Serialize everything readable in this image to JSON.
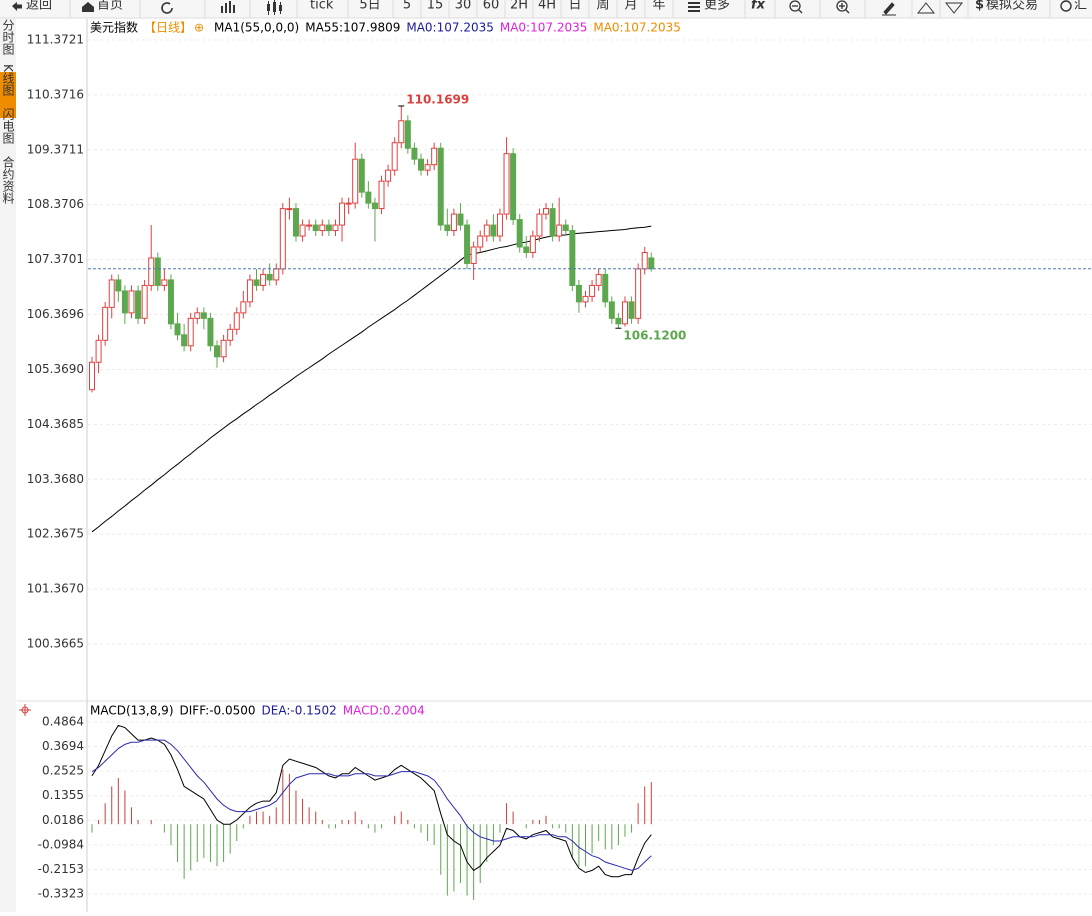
{
  "toolbar": {
    "back": "返回",
    "home": "首页",
    "tick": "tick",
    "periods": [
      "5日",
      "5",
      "15",
      "30",
      "60",
      "2H",
      "4H",
      "日",
      "周",
      "月",
      "年"
    ],
    "more": "更多",
    "fx": "fx",
    "sim": "模拟交易",
    "cut": "汇"
  },
  "side_tabs": [
    "分时图",
    "K线图",
    "闪电图",
    "合约资料"
  ],
  "chart_data": [
    {
      "type": "candlestick",
      "legend": [
        {
          "text": "美元指数",
          "color": "#000000"
        },
        {
          "text": "【日线】",
          "color": "#f08c00"
        },
        {
          "text": "MA1(55,0,0,0)",
          "color": "#000000"
        },
        {
          "text": "MA55:107.9809",
          "color": "#000000"
        },
        {
          "text": "MA0:107.2035",
          "color": "#1a1a9c"
        },
        {
          "text": "MA0:107.2035",
          "color": "#e020e0"
        },
        {
          "text": "MA0:107.2035",
          "color": "#f08c00"
        }
      ],
      "ylim": [
        99.3456,
        111.7365
      ],
      "yticks": [
        111.3721,
        110.3716,
        109.3711,
        108.3706,
        107.3701,
        106.3696,
        {
          "value": 105.369,
          "label": "105.3690"
        },
        104.3685,
        {
          "value": 103.368,
          "label": "103.3680"
        },
        102.3675,
        {
          "value": 101.367,
          "label": "101.3670"
        },
        100.3665
      ],
      "up_color": "#e0403f",
      "down_color": "#5da84e",
      "last_color": "#4a7ab0",
      "candles": [
        [
          105.0,
          105.6,
          104.95,
          105.5
        ],
        [
          105.5,
          106.0,
          105.3,
          105.9
        ],
        [
          105.9,
          106.6,
          105.8,
          106.5
        ],
        [
          106.5,
          107.1,
          106.3,
          107.0
        ],
        [
          107.0,
          107.1,
          106.6,
          106.8
        ],
        [
          106.8,
          106.9,
          106.2,
          106.4
        ],
        [
          106.4,
          106.9,
          106.3,
          106.8
        ],
        [
          106.8,
          106.9,
          106.2,
          106.3
        ],
        [
          106.3,
          107.0,
          106.2,
          106.9
        ],
        [
          106.9,
          108.0,
          106.8,
          107.4
        ],
        [
          107.4,
          107.5,
          106.8,
          106.9
        ],
        [
          106.9,
          107.2,
          106.8,
          107.0
        ],
        [
          107.0,
          107.1,
          106.1,
          106.2
        ],
        [
          106.2,
          106.4,
          105.9,
          106.0
        ],
        [
          106.0,
          106.2,
          105.7,
          105.8
        ],
        [
          105.8,
          106.4,
          105.7,
          106.3
        ],
        [
          106.3,
          106.5,
          106.2,
          106.4
        ],
        [
          106.4,
          106.5,
          106.1,
          106.3
        ],
        [
          106.3,
          106.4,
          105.7,
          105.8
        ],
        [
          105.8,
          105.9,
          105.4,
          105.6
        ],
        [
          105.6,
          106.0,
          105.5,
          105.9
        ],
        [
          105.9,
          106.2,
          105.8,
          106.1
        ],
        [
          106.1,
          106.5,
          106.0,
          106.4
        ],
        [
          106.4,
          106.8,
          106.3,
          106.6
        ],
        [
          106.6,
          107.1,
          106.5,
          107.0
        ],
        [
          107.0,
          107.2,
          106.8,
          106.9
        ],
        [
          106.9,
          107.2,
          106.8,
          107.1
        ],
        [
          107.1,
          107.3,
          106.9,
          107.0
        ],
        [
          107.0,
          107.3,
          106.9,
          107.2
        ],
        [
          107.2,
          108.4,
          107.1,
          108.3
        ],
        [
          108.3,
          108.5,
          108.1,
          108.3
        ],
        [
          108.3,
          108.4,
          107.7,
          107.8
        ],
        [
          107.8,
          108.1,
          107.7,
          108.0
        ],
        [
          108.0,
          108.1,
          107.9,
          108.0
        ],
        [
          108.0,
          108.1,
          107.8,
          107.9
        ],
        [
          107.9,
          108.1,
          107.8,
          108.0
        ],
        [
          108.0,
          108.1,
          107.8,
          107.9
        ],
        [
          107.9,
          108.1,
          107.8,
          108.0
        ],
        [
          108.0,
          108.5,
          107.7,
          108.4
        ],
        [
          108.4,
          108.5,
          108.2,
          108.4
        ],
        [
          108.4,
          109.5,
          108.3,
          109.2
        ],
        [
          109.2,
          109.3,
          108.5,
          108.6
        ],
        [
          108.6,
          108.8,
          108.3,
          108.4
        ],
        [
          108.4,
          108.5,
          107.7,
          108.3
        ],
        [
          108.3,
          108.9,
          108.2,
          108.8
        ],
        [
          108.8,
          109.1,
          108.7,
          109.0
        ],
        [
          109.0,
          109.6,
          108.9,
          109.5
        ],
        [
          109.5,
          110.1699,
          109.4,
          109.9
        ],
        [
          109.9,
          110.0,
          109.3,
          109.4
        ],
        [
          109.4,
          109.5,
          109.1,
          109.2
        ],
        [
          109.2,
          109.3,
          108.9,
          109.0
        ],
        [
          109.0,
          109.2,
          108.9,
          109.1
        ],
        [
          109.1,
          109.5,
          109.0,
          109.4
        ],
        [
          109.4,
          109.5,
          107.9,
          108.0
        ],
        [
          108.0,
          108.3,
          107.8,
          107.9
        ],
        [
          107.9,
          108.3,
          107.8,
          108.2
        ],
        [
          108.2,
          108.4,
          107.9,
          108.0
        ],
        [
          108.0,
          108.1,
          107.2,
          107.3
        ],
        [
          107.3,
          107.7,
          107.0,
          107.6
        ],
        [
          107.6,
          107.9,
          107.5,
          107.8
        ],
        [
          107.8,
          108.1,
          107.7,
          108.0
        ],
        [
          108.0,
          108.2,
          107.7,
          107.8
        ],
        [
          107.8,
          108.3,
          107.7,
          108.2
        ],
        [
          108.2,
          109.6,
          108.1,
          109.3
        ],
        [
          109.3,
          109.4,
          108.0,
          108.1
        ],
        [
          108.1,
          108.2,
          107.5,
          107.6
        ],
        [
          107.6,
          107.8,
          107.4,
          107.5
        ],
        [
          107.5,
          107.9,
          107.4,
          107.8
        ],
        [
          107.8,
          108.3,
          107.7,
          108.2
        ],
        [
          108.2,
          108.4,
          108.1,
          108.3
        ],
        [
          108.3,
          108.4,
          107.7,
          107.8
        ],
        [
          107.8,
          108.5,
          107.7,
          108.0
        ],
        [
          108.0,
          108.1,
          107.8,
          107.9
        ],
        [
          107.9,
          108.0,
          106.8,
          106.9
        ],
        [
          106.9,
          107.0,
          106.4,
          106.6
        ],
        [
          106.6,
          106.8,
          106.5,
          106.7
        ],
        [
          106.7,
          107.0,
          106.6,
          106.9
        ],
        [
          106.9,
          107.2,
          106.8,
          107.1
        ],
        [
          107.1,
          107.2,
          106.5,
          106.6
        ],
        [
          106.6,
          106.7,
          106.2,
          106.3
        ],
        [
          106.3,
          106.4,
          106.12,
          106.2
        ],
        [
          106.2,
          106.7,
          106.15,
          106.6
        ],
        [
          106.6,
          106.7,
          106.2,
          106.3
        ],
        [
          106.3,
          107.3,
          106.2,
          107.2
        ],
        [
          107.2,
          107.6,
          107.1,
          107.5
        ],
        [
          107.4,
          107.5,
          107.15,
          107.2035
        ]
      ],
      "lines": [
        {
          "color": "#000000",
          "values": [
            102.41,
            102.5,
            102.6,
            102.69,
            102.79,
            102.88,
            102.98,
            103.07,
            103.17,
            103.26,
            103.36,
            103.45,
            103.55,
            103.64,
            103.74,
            103.83,
            103.93,
            104.02,
            104.12,
            104.21,
            104.3,
            104.39,
            104.47,
            104.56,
            104.64,
            104.73,
            104.81,
            104.9,
            104.98,
            105.07,
            105.15,
            105.24,
            105.32,
            105.4,
            105.48,
            105.56,
            105.65,
            105.73,
            105.81,
            105.89,
            105.97,
            106.05,
            106.14,
            106.22,
            106.3,
            106.38,
            106.46,
            106.55,
            106.63,
            106.72,
            106.81,
            106.9,
            106.99,
            107.08,
            107.17,
            107.26,
            107.36,
            107.45,
            107.48,
            107.5,
            107.53,
            107.56,
            107.59,
            107.61,
            107.64,
            107.67,
            107.69,
            107.72,
            107.75,
            107.78,
            107.8,
            107.81,
            107.82,
            107.84,
            107.85,
            107.86,
            107.87,
            107.88,
            107.89,
            107.9,
            107.91,
            107.92,
            107.94,
            107.95,
            107.96,
            107.98
          ]
        }
      ],
      "annotations": [
        {
          "value": 110.1699,
          "label": "110.1699",
          "color": "#d9413c"
        },
        {
          "value": 106.12,
          "label": "106.1200",
          "color": "#5da84e"
        }
      ]
    },
    {
      "type": "macd",
      "legend": [
        {
          "text": "MACD(13,8,9)",
          "color": "#000000"
        },
        {
          "text": "DIFF:-0.0500",
          "color": "#000000"
        },
        {
          "text": "DEA:-0.1502",
          "color": "#1a1a9c"
        },
        {
          "text": "MACD:0.2004",
          "color": "#e020e0"
        }
      ],
      "ylim": [
        -0.418,
        0.5769
      ],
      "yticks": [
        0.4864,
        0.3694,
        0.2525,
        0.1355,
        0.0186,
        -0.0984,
        -0.2153,
        -0.3323
      ],
      "bars": {
        "up_color": "#c8403a",
        "down_color": "#5da84e",
        "values": [
          -0.04,
          0.02,
          0.1,
          0.18,
          0.22,
          0.16,
          0.08,
          0.02,
          0.0,
          0.02,
          0.0,
          -0.04,
          -0.1,
          -0.18,
          -0.26,
          -0.22,
          -0.18,
          -0.16,
          -0.18,
          -0.2,
          -0.18,
          -0.14,
          -0.08,
          -0.02,
          0.04,
          0.06,
          0.06,
          0.04,
          0.08,
          0.26,
          0.24,
          0.16,
          0.12,
          0.08,
          0.06,
          0.02,
          -0.02,
          -0.02,
          0.02,
          0.02,
          0.06,
          0.02,
          -0.02,
          -0.04,
          -0.02,
          0.0,
          0.04,
          0.06,
          0.02,
          -0.02,
          -0.04,
          -0.08,
          -0.1,
          -0.24,
          -0.34,
          -0.32,
          -0.28,
          -0.34,
          -0.36,
          -0.28,
          -0.18,
          -0.1,
          -0.04,
          0.1,
          0.06,
          0.0,
          -0.02,
          0.02,
          0.02,
          0.04,
          -0.02,
          -0.02,
          -0.04,
          -0.16,
          -0.2,
          -0.2,
          -0.14,
          -0.08,
          -0.12,
          -0.12,
          -0.1,
          -0.06,
          -0.04,
          0.1,
          0.18,
          0.2004
        ]
      },
      "series": [
        {
          "color": "#000000",
          "values": [
            0.23,
            0.28,
            0.35,
            0.42,
            0.47,
            0.46,
            0.43,
            0.4,
            0.4,
            0.41,
            0.4,
            0.38,
            0.33,
            0.26,
            0.18,
            0.16,
            0.14,
            0.12,
            0.07,
            0.02,
            0.0,
            0.0,
            0.02,
            0.05,
            0.08,
            0.1,
            0.11,
            0.11,
            0.15,
            0.28,
            0.31,
            0.3,
            0.29,
            0.28,
            0.27,
            0.25,
            0.23,
            0.22,
            0.24,
            0.24,
            0.27,
            0.25,
            0.23,
            0.21,
            0.22,
            0.23,
            0.26,
            0.28,
            0.26,
            0.24,
            0.22,
            0.19,
            0.16,
            0.05,
            -0.05,
            -0.08,
            -0.1,
            -0.18,
            -0.22,
            -0.2,
            -0.16,
            -0.13,
            -0.1,
            -0.02,
            -0.03,
            -0.06,
            -0.07,
            -0.05,
            -0.04,
            -0.03,
            -0.06,
            -0.07,
            -0.08,
            -0.16,
            -0.21,
            -0.23,
            -0.22,
            -0.2,
            -0.24,
            -0.25,
            -0.25,
            -0.24,
            -0.24,
            -0.16,
            -0.09,
            -0.05
          ]
        },
        {
          "color": "#2a2ab0",
          "values": [
            0.25,
            0.27,
            0.3,
            0.33,
            0.36,
            0.38,
            0.39,
            0.39,
            0.4,
            0.4,
            0.4,
            0.4,
            0.38,
            0.35,
            0.31,
            0.27,
            0.23,
            0.2,
            0.16,
            0.12,
            0.09,
            0.07,
            0.06,
            0.06,
            0.06,
            0.07,
            0.08,
            0.09,
            0.11,
            0.15,
            0.19,
            0.22,
            0.23,
            0.24,
            0.24,
            0.24,
            0.24,
            0.23,
            0.23,
            0.23,
            0.24,
            0.24,
            0.24,
            0.23,
            0.23,
            0.23,
            0.24,
            0.25,
            0.25,
            0.25,
            0.24,
            0.23,
            0.21,
            0.17,
            0.12,
            0.08,
            0.04,
            -0.01,
            -0.04,
            -0.06,
            -0.07,
            -0.08,
            -0.08,
            -0.07,
            -0.06,
            -0.06,
            -0.06,
            -0.06,
            -0.05,
            -0.05,
            -0.05,
            -0.06,
            -0.06,
            -0.08,
            -0.11,
            -0.13,
            -0.15,
            -0.16,
            -0.18,
            -0.19,
            -0.2,
            -0.21,
            -0.22,
            -0.21,
            -0.18,
            -0.1502
          ]
        }
      ]
    }
  ]
}
